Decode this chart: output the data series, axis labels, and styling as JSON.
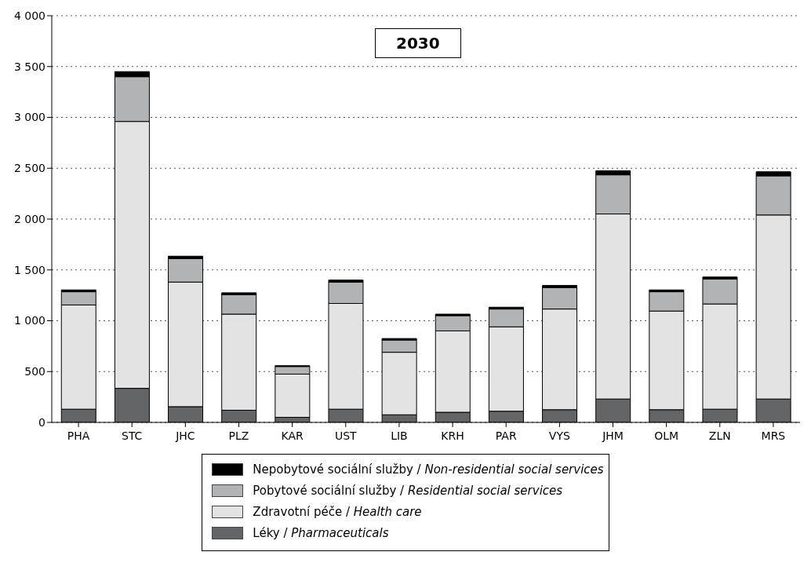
{
  "chart_data": {
    "type": "bar",
    "title": "2030",
    "stacked": true,
    "categories": [
      "PHA",
      "STC",
      "JHC",
      "PLZ",
      "KAR",
      "UST",
      "LIB",
      "KRH",
      "PAR",
      "VYS",
      "JHM",
      "OLM",
      "ZLN",
      "MRS"
    ],
    "series": [
      {
        "name": "Léky / Pharmaceuticals",
        "color": "#636466",
        "values": [
          130,
          335,
          155,
          120,
          50,
          130,
          75,
          100,
          110,
          125,
          230,
          125,
          130,
          230
        ]
      },
      {
        "name": "Zdravotní péče / Health care",
        "color": "#e2e3e2",
        "values": [
          1025,
          2625,
          1225,
          945,
          425,
          1040,
          615,
          800,
          830,
          990,
          1820,
          970,
          1035,
          1810
        ]
      },
      {
        "name": "Pobytové sociální služby / Residential social services",
        "color": "#b2b3b4",
        "values": [
          130,
          440,
          230,
          190,
          75,
          210,
          120,
          150,
          175,
          210,
          385,
          190,
          245,
          385
        ]
      },
      {
        "name": "Nepobytové sociální služby / Non-residential social services",
        "color": "#000000",
        "values": [
          18,
          50,
          25,
          20,
          8,
          20,
          15,
          15,
          18,
          22,
          40,
          18,
          20,
          40
        ]
      }
    ],
    "ylim": [
      0,
      4000
    ],
    "yticks": [
      0,
      500,
      {
        "value": 1000,
        "label": "1 000"
      },
      {
        "value": 1500,
        "label": "1 500"
      },
      {
        "value": 2000,
        "label": "2 000"
      },
      {
        "value": 2500,
        "label": "2 500"
      },
      {
        "value": 3000,
        "label": "3 000"
      },
      {
        "value": 3500,
        "label": "3 500"
      },
      {
        "value": 4000,
        "label": "4 000"
      }
    ],
    "grid": "y",
    "legend": "bottom"
  }
}
